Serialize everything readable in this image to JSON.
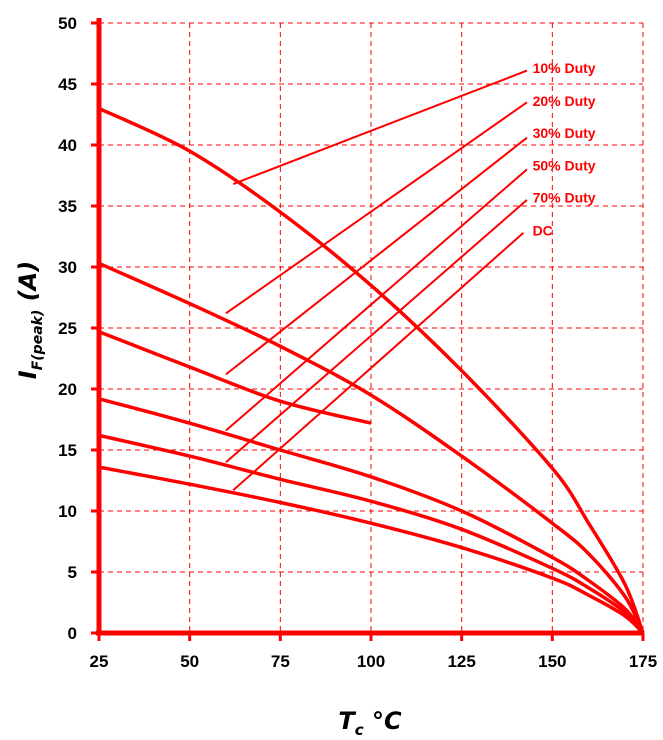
{
  "colors": {
    "accent": "#ff0000",
    "text": "#000000",
    "background": "#ffffff"
  },
  "chart_data": {
    "type": "line",
    "title": "",
    "xlabel": {
      "main": "T",
      "sub": "c",
      "unit": " °C"
    },
    "ylabel": {
      "main": "I",
      "sub": "F(peak)",
      "unit": " (A)"
    },
    "xlim": [
      25,
      175
    ],
    "ylim": [
      0,
      50
    ],
    "xticks": [
      25,
      50,
      75,
      100,
      125,
      150,
      175
    ],
    "yticks": [
      0,
      5,
      10,
      15,
      20,
      25,
      30,
      35,
      40,
      45,
      50
    ],
    "grid": true,
    "series": [
      {
        "name": "10% Duty",
        "x": [
          25,
          50,
          75,
          100,
          125,
          150,
          160,
          170,
          175
        ],
        "y": [
          43,
          39.5,
          34.5,
          28.5,
          21.5,
          13.5,
          9,
          4,
          0
        ],
        "label_pos": [
          144,
          46.3
        ],
        "leader": [
          [
            62,
            36.8
          ],
          [
            143,
            46.1
          ]
        ]
      },
      {
        "name": "20% Duty",
        "x": [
          25,
          50,
          75,
          100,
          125,
          150,
          160,
          170,
          175
        ],
        "y": [
          30.3,
          27,
          23.5,
          19.5,
          14.5,
          9,
          6.5,
          3,
          0
        ],
        "label_pos": [
          144,
          43.6
        ],
        "leader": [
          [
            60,
            26.2
          ],
          [
            143,
            43.5
          ]
        ]
      },
      {
        "name": "30% Duty",
        "x": [
          25,
          50,
          75,
          100
        ],
        "y": [
          24.7,
          21.8,
          19,
          17.2
        ],
        "label_pos": [
          144,
          41
        ],
        "leader": [
          [
            60,
            21.2
          ],
          [
            143,
            40.6
          ]
        ]
      },
      {
        "name": "50% Duty",
        "x": [
          25,
          50,
          75,
          100,
          125,
          150,
          160,
          170,
          175
        ],
        "y": [
          19.2,
          17.2,
          15,
          12.8,
          10,
          6.2,
          4.3,
          2,
          0
        ],
        "label_pos": [
          144,
          38.3
        ],
        "leader": [
          [
            60,
            16.6
          ],
          [
            143,
            38
          ]
        ]
      },
      {
        "name": "70% Duty",
        "x": [
          25,
          50,
          75,
          100,
          125,
          150,
          160,
          170,
          175
        ],
        "y": [
          16.2,
          14.5,
          12.6,
          10.8,
          8.5,
          5.3,
          3.7,
          1.7,
          0
        ],
        "label_pos": [
          144,
          35.7
        ],
        "leader": [
          [
            60,
            14
          ],
          [
            143,
            35.5
          ]
        ]
      },
      {
        "name": "DC",
        "x": [
          25,
          50,
          75,
          100,
          125,
          150,
          160,
          170,
          175
        ],
        "y": [
          13.6,
          12.2,
          10.7,
          9,
          7,
          4.5,
          3.1,
          1.4,
          0
        ],
        "label_pos": [
          144,
          33
        ],
        "leader": [
          [
            62,
            11.7
          ],
          [
            142,
            32.8
          ]
        ]
      }
    ]
  }
}
